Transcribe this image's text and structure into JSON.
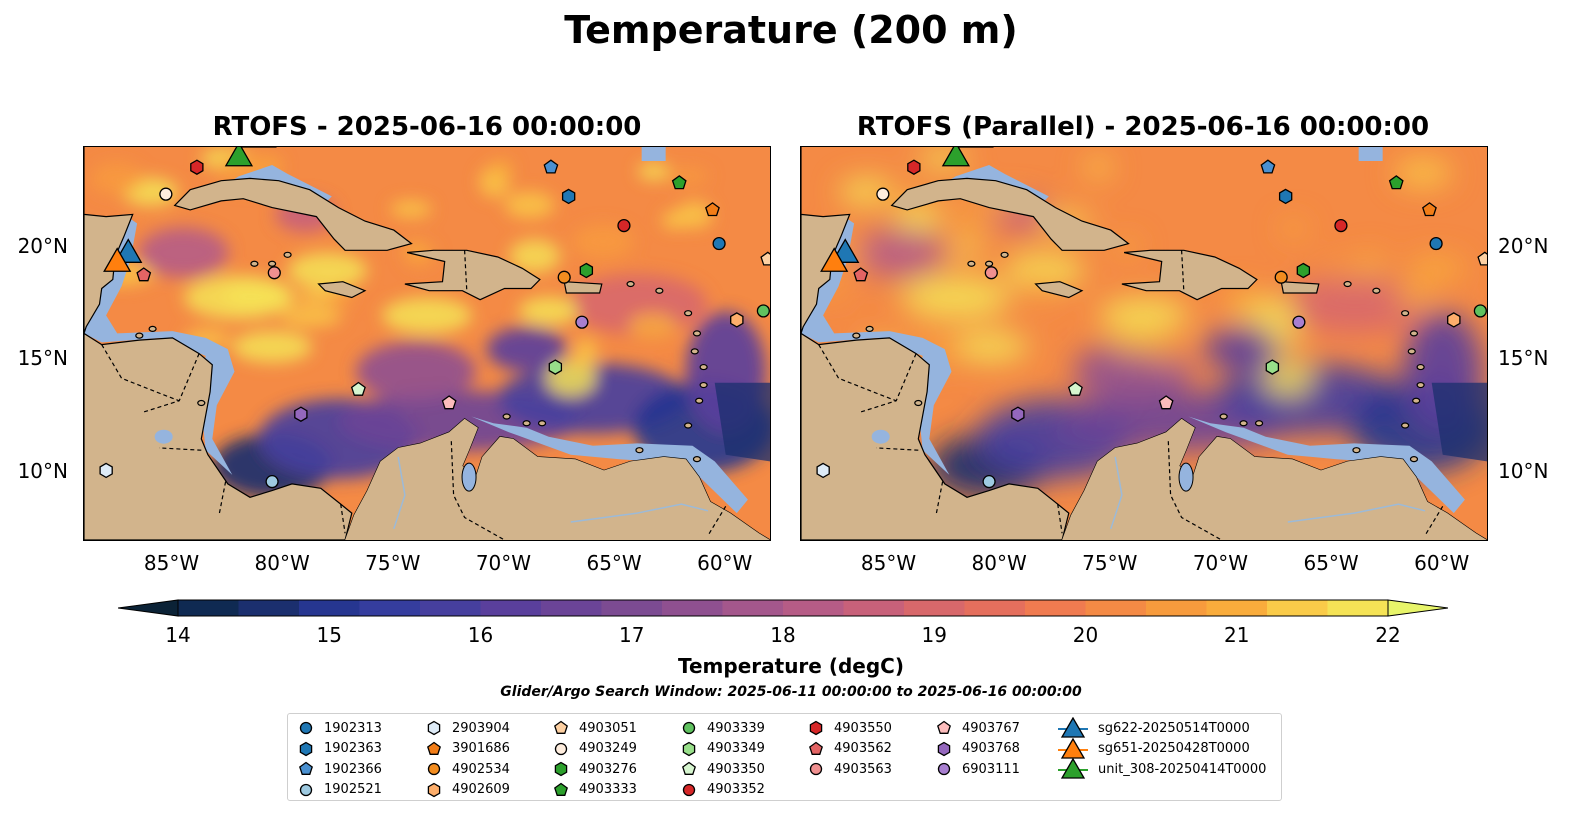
{
  "title": "Temperature (200 m)",
  "maps": [
    {
      "title": "RTOFS - 2025-06-16 00:00:00",
      "variant": "rtofs"
    },
    {
      "title": "RTOFS (Parallel) - 2025-06-16 00:00:00",
      "variant": "parallel"
    }
  ],
  "x_ticks": [
    "85°W",
    "80°W",
    "75°W",
    "70°W",
    "65°W",
    "60°W"
  ],
  "y_ticks": [
    "20°N",
    "15°N",
    "10°N"
  ],
  "colorbar": {
    "label": "Temperature (degC)",
    "ticks": [
      "14",
      "15",
      "16",
      "17",
      "18",
      "19",
      "20",
      "21",
      "22"
    ],
    "colors": [
      "#0f2a52",
      "#1b2f6e",
      "#263690",
      "#353d9e",
      "#463f9e",
      "#5a3f9c",
      "#6b4497",
      "#7c4b92",
      "#8f5090",
      "#a4578c",
      "#b65c86",
      "#c8617a",
      "#d8686b",
      "#e56f5d",
      "#f07b50",
      "#f48a45",
      "#f79b3d",
      "#f9ac3c",
      "#facb49",
      "#f5e356"
    ],
    "under_color": "#0b2236",
    "over_color": "#e8f56a"
  },
  "search_window": "Glider/Argo Search Window: 2025-06-11 00:00:00 to 2025-06-16 00:00:00",
  "legend": {
    "columns": [
      [
        {
          "label": "1902313",
          "marker": "circle",
          "color": "#1f77b4"
        },
        {
          "label": "1902363",
          "marker": "hexagon",
          "color": "#1f77b4"
        },
        {
          "label": "1902366",
          "marker": "pentagon",
          "color": "#4a90d0"
        },
        {
          "label": "1902521",
          "marker": "circle",
          "color": "#9ecae1"
        }
      ],
      [
        {
          "label": "2903904",
          "marker": "hexagon",
          "color": "#deebf7"
        },
        {
          "label": "3901686",
          "marker": "pentagon",
          "color": "#f27d17"
        },
        {
          "label": "4902534",
          "marker": "circle",
          "color": "#f28c1f"
        },
        {
          "label": "4902609",
          "marker": "hexagon",
          "color": "#fdae6b"
        }
      ],
      [
        {
          "label": "4903051",
          "marker": "pentagon",
          "color": "#fdd0a2"
        },
        {
          "label": "4903249",
          "marker": "circle",
          "color": "#feedde"
        },
        {
          "label": "4903276",
          "marker": "hexagon",
          "color": "#2ca02c"
        },
        {
          "label": "4903333",
          "marker": "pentagon",
          "color": "#2ca02c"
        }
      ],
      [
        {
          "label": "4903339",
          "marker": "circle",
          "color": "#5fc15f"
        },
        {
          "label": "4903349",
          "marker": "hexagon",
          "color": "#98df8a"
        },
        {
          "label": "4903350",
          "marker": "pentagon",
          "color": "#d6f5cf"
        },
        {
          "label": "4903352",
          "marker": "circle",
          "color": "#d62728"
        }
      ],
      [
        {
          "label": "4903550",
          "marker": "hexagon",
          "color": "#d62728"
        },
        {
          "label": "4903562",
          "marker": "pentagon",
          "color": "#e36464"
        },
        {
          "label": "4903563",
          "marker": "circle",
          "color": "#f09090"
        }
      ],
      [
        {
          "label": "4903767",
          "marker": "pentagon",
          "color": "#fcbcbc"
        },
        {
          "label": "4903768",
          "marker": "hexagon",
          "color": "#9467bd"
        },
        {
          "label": "6903111",
          "marker": "circle",
          "color": "#a87fd0"
        }
      ],
      [
        {
          "label": "sg622-20250514T0000",
          "marker": "triangle",
          "color": "#1f77b4"
        },
        {
          "label": "sg651-20250428T0000",
          "marker": "triangle",
          "color": "#ff7f0e"
        },
        {
          "label": "unit_308-20250414T0000",
          "marker": "triangle",
          "color": "#2ca02c"
        }
      ]
    ]
  },
  "markers": [
    {
      "id": "1902313",
      "lon": -60.3,
      "lat": 20.2
    },
    {
      "id": "1902363",
      "lon": -67.1,
      "lat": 22.3
    },
    {
      "id": "1902366",
      "lon": -67.9,
      "lat": 23.6
    },
    {
      "id": "1902521",
      "lon": -80.5,
      "lat": 9.6
    },
    {
      "id": "2903904",
      "lon": -88.0,
      "lat": 10.1
    },
    {
      "id": "3901686",
      "lon": -60.6,
      "lat": 21.7
    },
    {
      "id": "4902534",
      "lon": -67.3,
      "lat": 18.7
    },
    {
      "id": "4902609",
      "lon": -59.5,
      "lat": 16.8
    },
    {
      "id": "4903051",
      "lon": -58.1,
      "lat": 19.5
    },
    {
      "id": "4903249",
      "lon": -85.3,
      "lat": 22.4
    },
    {
      "id": "4903276",
      "lon": -66.3,
      "lat": 19.0
    },
    {
      "id": "4903333",
      "lon": -62.1,
      "lat": 22.9
    },
    {
      "id": "4903339",
      "lon": -58.3,
      "lat": 17.2
    },
    {
      "id": "4903349",
      "lon": -67.7,
      "lat": 14.7
    },
    {
      "id": "4903350",
      "lon": -76.6,
      "lat": 13.7
    },
    {
      "id": "4903352",
      "lon": -64.6,
      "lat": 21.0
    },
    {
      "id": "4903550",
      "lon": -83.9,
      "lat": 23.6
    },
    {
      "id": "4903562",
      "lon": -86.3,
      "lat": 18.8
    },
    {
      "id": "4903563",
      "lon": -80.4,
      "lat": 18.9
    },
    {
      "id": "4903767",
      "lon": -72.5,
      "lat": 13.1
    },
    {
      "id": "4903768",
      "lon": -79.2,
      "lat": 12.6
    },
    {
      "id": "6903111",
      "lon": -66.5,
      "lat": 16.7
    }
  ],
  "gliders": [
    {
      "id": "sg622-20250514T0000",
      "lon": -87.0,
      "lat": 19.8
    },
    {
      "id": "sg651-20250428T0000",
      "lon": -87.5,
      "lat": 19.4
    },
    {
      "id": "unit_308-20250414T0000",
      "lon": -82.0,
      "lat": 24.1
    }
  ],
  "extent": {
    "lon": [
      -89.0,
      -58.0
    ],
    "lat": [
      7.0,
      24.5
    ]
  }
}
